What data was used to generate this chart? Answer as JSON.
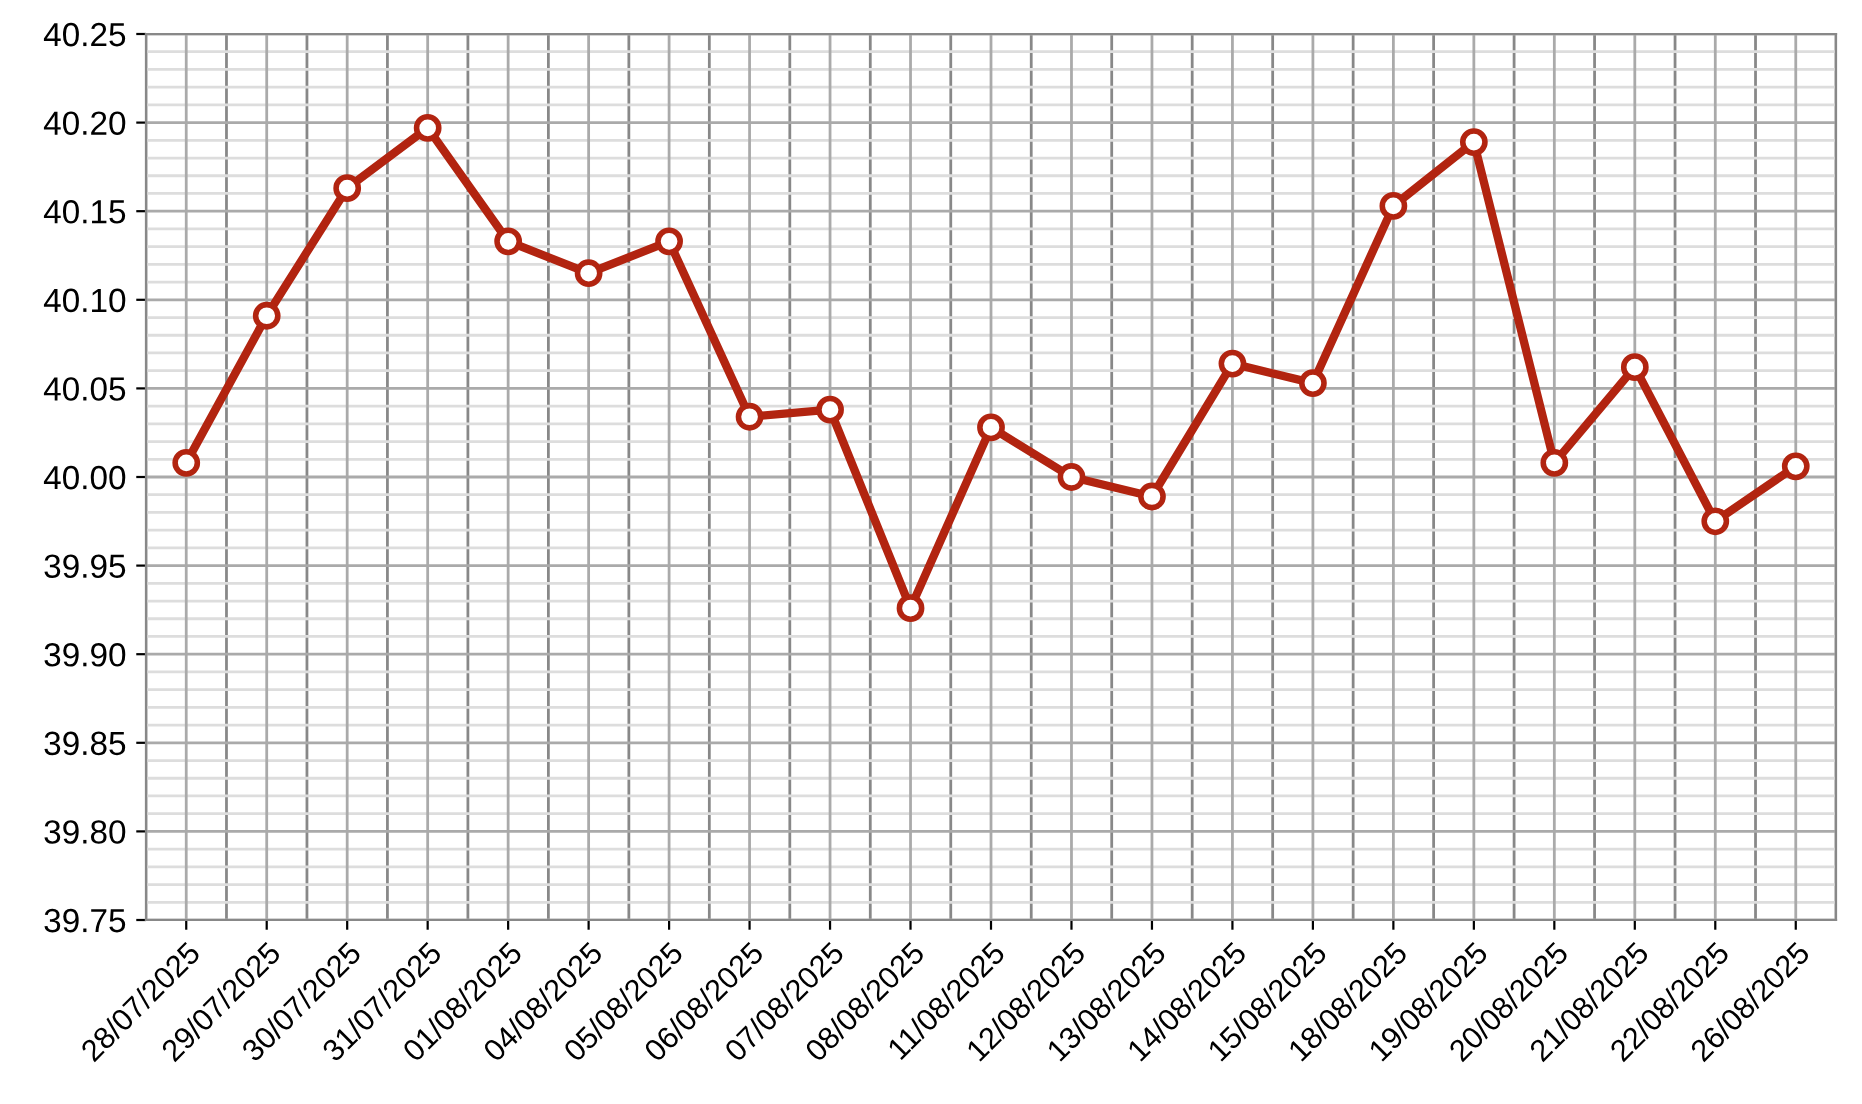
{
  "chart_data": {
    "type": "line",
    "categories": [
      "28/07/2025",
      "29/07/2025",
      "30/07/2025",
      "31/07/2025",
      "01/08/2025",
      "04/08/2025",
      "05/08/2025",
      "06/08/2025",
      "07/08/2025",
      "08/08/2025",
      "11/08/2025",
      "12/08/2025",
      "13/08/2025",
      "14/08/2025",
      "15/08/2025",
      "18/08/2025",
      "19/08/2025",
      "20/08/2025",
      "21/08/2025",
      "22/08/2025",
      "26/08/2025"
    ],
    "series": [
      {
        "color": "#b22410",
        "values": [
          40.008,
          40.091,
          40.163,
          40.197,
          40.133,
          40.115,
          40.133,
          40.034,
          40.038,
          39.926,
          40.028,
          40.0,
          39.989,
          40.064,
          40.053,
          40.153,
          40.189,
          40.008,
          40.062,
          39.975,
          40.006
        ]
      }
    ],
    "ylim": [
      39.75,
      40.25
    ],
    "yticks": [
      {
        "value": 39.75,
        "label": "39.75"
      },
      {
        "value": 39.8,
        "label": "39.80"
      },
      {
        "value": 39.85,
        "label": "39.85"
      },
      {
        "value": 39.9,
        "label": "39.90"
      },
      {
        "value": 39.95,
        "label": "39.95"
      },
      {
        "value": 40.0,
        "label": "40.00"
      },
      {
        "value": 40.05,
        "label": "40.05"
      },
      {
        "value": 40.1,
        "label": "40.10"
      },
      {
        "value": 40.15,
        "label": "40.15"
      },
      {
        "value": 40.2,
        "label": "40.20"
      },
      {
        "value": 40.25,
        "label": "40.25"
      }
    ],
    "grid": true,
    "marker": "circle",
    "line_style": "solid"
  }
}
